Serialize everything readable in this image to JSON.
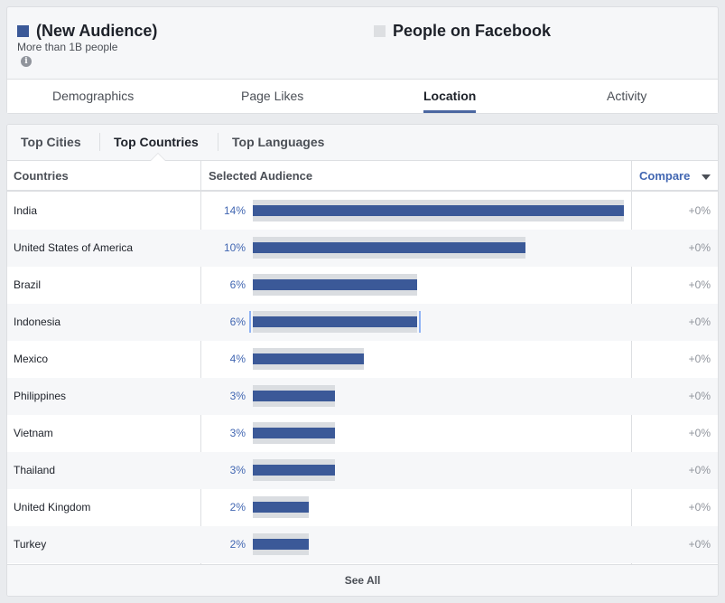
{
  "colors": {
    "new_audience_swatch": "#3b5998",
    "facebook_swatch": "#dddfe2",
    "bar": "#3b5998",
    "bar_track": "#dadde1",
    "link": "#4267b2"
  },
  "audiences": {
    "new": {
      "title": "(New Audience)",
      "subtitle": "More than 1B people",
      "info_icon": "info-icon"
    },
    "facebook": {
      "title": "People on Facebook"
    }
  },
  "main_tabs": [
    {
      "label": "Demographics",
      "active": false
    },
    {
      "label": "Page Likes",
      "active": false
    },
    {
      "label": "Location",
      "active": true
    },
    {
      "label": "Activity",
      "active": false
    }
  ],
  "sub_tabs": [
    {
      "label": "Top Cities",
      "active": false
    },
    {
      "label": "Top Countries",
      "active": true
    },
    {
      "label": "Top Languages",
      "active": false
    }
  ],
  "table": {
    "headers": {
      "countries": "Countries",
      "selected": "Selected Audience",
      "compare": "Compare"
    },
    "max_percent": 14,
    "rows": [
      {
        "country": "India",
        "percent_label": "14%",
        "percent": 14,
        "compare": "+0%"
      },
      {
        "country": "United States of America",
        "percent_label": "10%",
        "percent": 10.3,
        "compare": "+0%"
      },
      {
        "country": "Brazil",
        "percent_label": "6%",
        "percent": 6.2,
        "compare": "+0%"
      },
      {
        "country": "Indonesia",
        "percent_label": "6%",
        "percent": 6.2,
        "compare": "+0%",
        "hovered": true
      },
      {
        "country": "Mexico",
        "percent_label": "4%",
        "percent": 4.2,
        "compare": "+0%"
      },
      {
        "country": "Philippines",
        "percent_label": "3%",
        "percent": 3.1,
        "compare": "+0%"
      },
      {
        "country": "Vietnam",
        "percent_label": "3%",
        "percent": 3.1,
        "compare": "+0%"
      },
      {
        "country": "Thailand",
        "percent_label": "3%",
        "percent": 3.1,
        "compare": "+0%"
      },
      {
        "country": "United Kingdom",
        "percent_label": "2%",
        "percent": 2.1,
        "compare": "+0%"
      },
      {
        "country": "Turkey",
        "percent_label": "2%",
        "percent": 2.1,
        "compare": "+0%"
      }
    ]
  },
  "footer": {
    "see_all": "See All"
  }
}
